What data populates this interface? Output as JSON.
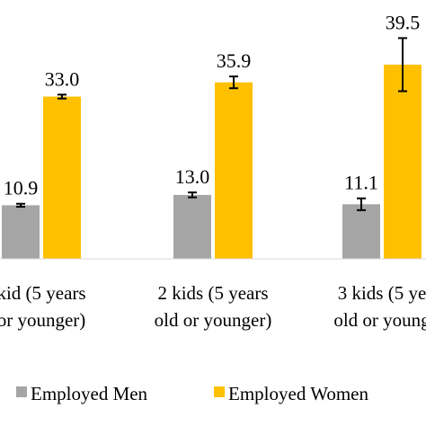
{
  "chart_data": {
    "type": "bar",
    "categories": [
      [
        "kid (5 years",
        "or younger)"
      ],
      [
        "2 kids (5 years",
        "old or younger)"
      ],
      [
        "3 kids (5 ye",
        "old or young"
      ]
    ],
    "series": [
      {
        "name": "Employed Men",
        "color": "#a5a5a5",
        "values": [
          10.9,
          13.0,
          11.1
        ],
        "labels": [
          "10.9",
          "13.0",
          "11.1"
        ],
        "err": [
          0.3,
          0.5,
          1.2
        ]
      },
      {
        "name": "Employed Women",
        "color": "#ffc000",
        "values": [
          33.0,
          35.9,
          39.5
        ],
        "labels": [
          "33.0",
          "35.9",
          "39.5"
        ],
        "err": [
          0.4,
          1.2,
          5.4
        ]
      }
    ],
    "title": "",
    "xlabel": "",
    "ylabel": "",
    "ylim": [
      0,
      47
    ],
    "grid": false,
    "legend": "bottom"
  }
}
